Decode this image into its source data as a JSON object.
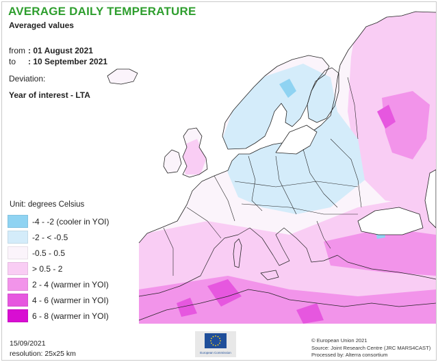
{
  "header": {
    "title": "AVERAGE DAILY TEMPERATURE",
    "subtitle": "Averaged values"
  },
  "period": {
    "from_label": "from",
    "from_value": ": 01 August 2021",
    "to_label": "to",
    "to_value": ": 10 September 2021"
  },
  "deviation": {
    "label": "Deviation:",
    "value": "Year of interest - LTA"
  },
  "legend": {
    "unit": "Unit: degrees Celsius",
    "items": [
      {
        "label": "-4 - -2 (cooler in YOI)",
        "color": "#8fd3f2"
      },
      {
        "label": "-2 - < -0.5",
        "color": "#d4ecfa"
      },
      {
        "label": "-0.5 - 0.5",
        "color": "#fbf4fb"
      },
      {
        "label": "> 0.5 - 2",
        "color": "#f9cdf4"
      },
      {
        "label": "2 - 4 (warmer in YOI)",
        "color": "#f294ea"
      },
      {
        "label": "4 - 6 (warmer in YOI)",
        "color": "#e657df"
      },
      {
        "label": "6 - 8 (warmer in YOI)",
        "color": "#d80ed2"
      }
    ]
  },
  "footer": {
    "date": "15/09/2021",
    "resolution": "resolution: 25x25 km",
    "logo_caption": "European Commission",
    "credits": [
      "© European Union 2021",
      "Source: Joint Research Centre (JRC MARS4CAST)",
      "Processed by: Alterra consortium"
    ]
  },
  "colors": {
    "title": "#2e9e2e",
    "eu_blue": "#1f4e9a",
    "eu_yellow": "#ffd617",
    "sea": "#ffffff",
    "border": "#222222"
  }
}
